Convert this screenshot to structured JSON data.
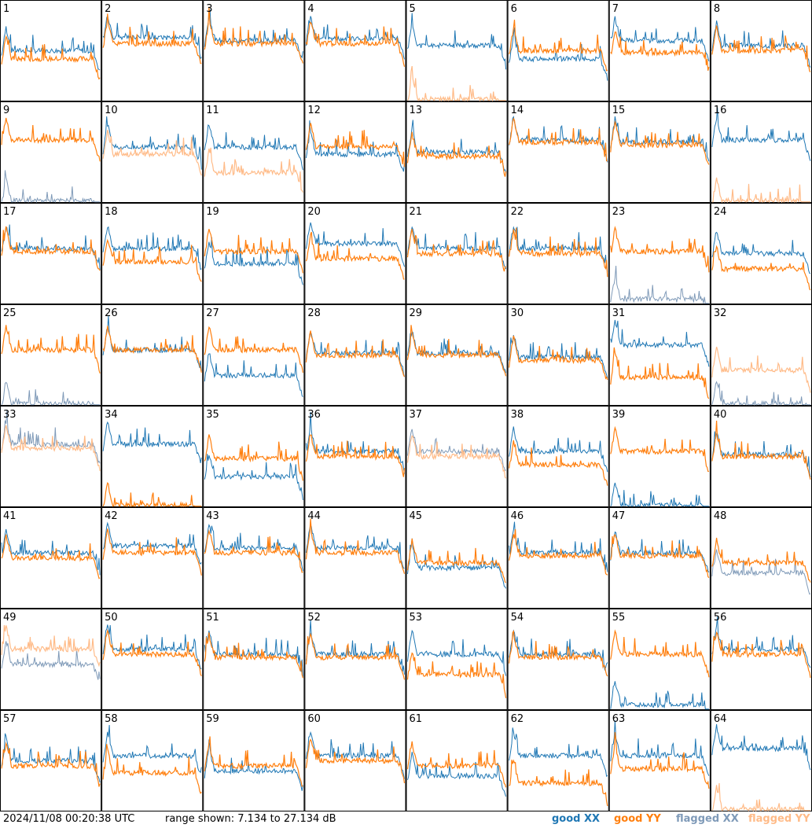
{
  "timestamp": "2024/11/08 00:20:38 UTC",
  "range_text": "range shown: 7.134 to 27.134 dB",
  "legend": {
    "good_xx": "good XX",
    "good_yy": "good YY",
    "flagged_xx": "flagged XX",
    "flagged_yy": "flagged YY"
  },
  "colors": {
    "good_xx": "#1f77b4",
    "good_yy": "#ff7f0e",
    "flagged_xx": "#7f9ab8",
    "flagged_yy": "#ffbb88"
  },
  "chart_data": {
    "type": "line",
    "grid": "8x8 small multiples",
    "y_range_db": [
      7.134,
      27.134
    ],
    "panels": [
      {
        "label": "1",
        "xx": "good",
        "yy": "good",
        "xx_level": 0.5,
        "yy_level": 0.42
      },
      {
        "label": "2",
        "xx": "good",
        "yy": "good",
        "xx_level": 0.63,
        "yy_level": 0.57
      },
      {
        "label": "3",
        "xx": "good",
        "yy": "good",
        "xx_level": 0.6,
        "yy_level": 0.57
      },
      {
        "label": "4",
        "xx": "good",
        "yy": "good",
        "xx_level": 0.62,
        "yy_level": 0.57
      },
      {
        "label": "5",
        "xx": "good",
        "yy": "flagged",
        "xx_level": 0.55,
        "yy_level": 0.02
      },
      {
        "label": "6",
        "xx": "good",
        "yy": "good",
        "xx_level": 0.42,
        "yy_level": 0.5
      },
      {
        "label": "7",
        "xx": "good",
        "yy": "good",
        "xx_level": 0.6,
        "yy_level": 0.48
      },
      {
        "label": "8",
        "xx": "good",
        "yy": "good",
        "xx_level": 0.55,
        "yy_level": 0.5
      },
      {
        "label": "9",
        "xx": "flagged",
        "yy": "good",
        "xx_level": 0.02,
        "yy_level": 0.62
      },
      {
        "label": "10",
        "xx": "good",
        "yy": "flagged",
        "xx_level": 0.55,
        "yy_level": 0.48
      },
      {
        "label": "11",
        "xx": "good",
        "yy": "flagged",
        "xx_level": 0.55,
        "yy_level": 0.3
      },
      {
        "label": "12",
        "xx": "good",
        "yy": "good",
        "xx_level": 0.48,
        "yy_level": 0.55
      },
      {
        "label": "13",
        "xx": "good",
        "yy": "good",
        "xx_level": 0.5,
        "yy_level": 0.46
      },
      {
        "label": "14",
        "xx": "good",
        "yy": "good",
        "xx_level": 0.62,
        "yy_level": 0.6
      },
      {
        "label": "15",
        "xx": "good",
        "yy": "good",
        "xx_level": 0.6,
        "yy_level": 0.57
      },
      {
        "label": "16",
        "xx": "good",
        "yy": "flagged",
        "xx_level": 0.62,
        "yy_level": 0.02
      },
      {
        "label": "17",
        "xx": "good",
        "yy": "good",
        "xx_level": 0.55,
        "yy_level": 0.52
      },
      {
        "label": "18",
        "xx": "good",
        "yy": "good",
        "xx_level": 0.55,
        "yy_level": 0.42
      },
      {
        "label": "19",
        "xx": "good",
        "yy": "good",
        "xx_level": 0.4,
        "yy_level": 0.52
      },
      {
        "label": "20",
        "xx": "good",
        "yy": "good",
        "xx_level": 0.6,
        "yy_level": 0.45
      },
      {
        "label": "21",
        "xx": "good",
        "yy": "good",
        "xx_level": 0.55,
        "yy_level": 0.5
      },
      {
        "label": "22",
        "xx": "good",
        "yy": "good",
        "xx_level": 0.55,
        "yy_level": 0.5
      },
      {
        "label": "23",
        "xx": "flagged",
        "yy": "good",
        "xx_level": 0.05,
        "yy_level": 0.52
      },
      {
        "label": "24",
        "xx": "good",
        "yy": "good",
        "xx_level": 0.5,
        "yy_level": 0.35
      },
      {
        "label": "25",
        "xx": "flagged",
        "yy": "good",
        "xx_level": 0.02,
        "yy_level": 0.55
      },
      {
        "label": "26",
        "xx": "good",
        "yy": "good",
        "xx_level": 0.55,
        "yy_level": 0.55
      },
      {
        "label": "27",
        "xx": "good",
        "yy": "good",
        "xx_level": 0.3,
        "yy_level": 0.55
      },
      {
        "label": "28",
        "xx": "good",
        "yy": "good",
        "xx_level": 0.52,
        "yy_level": 0.5
      },
      {
        "label": "29",
        "xx": "good",
        "yy": "good",
        "xx_level": 0.52,
        "yy_level": 0.5
      },
      {
        "label": "30",
        "xx": "good",
        "yy": "good",
        "xx_level": 0.48,
        "yy_level": 0.45
      },
      {
        "label": "31",
        "xx": "good",
        "yy": "good",
        "xx_level": 0.6,
        "yy_level": 0.28
      },
      {
        "label": "32",
        "xx": "flagged",
        "yy": "flagged",
        "xx_level": 0.02,
        "yy_level": 0.35
      },
      {
        "label": "33",
        "xx": "flagged",
        "yy": "flagged",
        "xx_level": 0.62,
        "yy_level": 0.58
      },
      {
        "label": "34",
        "xx": "good",
        "yy": "good",
        "xx_level": 0.62,
        "yy_level": 0.02
      },
      {
        "label": "35",
        "xx": "good",
        "yy": "good",
        "xx_level": 0.3,
        "yy_level": 0.48
      },
      {
        "label": "36",
        "xx": "good",
        "yy": "good",
        "xx_level": 0.55,
        "yy_level": 0.5
      },
      {
        "label": "37",
        "xx": "flagged",
        "yy": "flagged",
        "xx_level": 0.55,
        "yy_level": 0.5
      },
      {
        "label": "38",
        "xx": "good",
        "yy": "good",
        "xx_level": 0.55,
        "yy_level": 0.42
      },
      {
        "label": "39",
        "xx": "good",
        "yy": "good",
        "xx_level": 0.02,
        "yy_level": 0.55
      },
      {
        "label": "40",
        "xx": "good",
        "yy": "good",
        "xx_level": 0.52,
        "yy_level": 0.5
      },
      {
        "label": "41",
        "xx": "good",
        "yy": "good",
        "xx_level": 0.55,
        "yy_level": 0.5
      },
      {
        "label": "42",
        "xx": "good",
        "yy": "good",
        "xx_level": 0.62,
        "yy_level": 0.55
      },
      {
        "label": "43",
        "xx": "good",
        "yy": "good",
        "xx_level": 0.6,
        "yy_level": 0.55
      },
      {
        "label": "44",
        "xx": "good",
        "yy": "good",
        "xx_level": 0.6,
        "yy_level": 0.55
      },
      {
        "label": "45",
        "xx": "good",
        "yy": "good",
        "xx_level": 0.4,
        "yy_level": 0.45
      },
      {
        "label": "46",
        "xx": "good",
        "yy": "good",
        "xx_level": 0.55,
        "yy_level": 0.52
      },
      {
        "label": "47",
        "xx": "good",
        "yy": "good",
        "xx_level": 0.55,
        "yy_level": 0.52
      },
      {
        "label": "48",
        "xx": "flagged",
        "yy": "good",
        "xx_level": 0.35,
        "yy_level": 0.45
      },
      {
        "label": "49",
        "xx": "flagged",
        "yy": "flagged",
        "xx_level": 0.45,
        "yy_level": 0.6
      },
      {
        "label": "50",
        "xx": "good",
        "yy": "good",
        "xx_level": 0.6,
        "yy_level": 0.55
      },
      {
        "label": "51",
        "xx": "good",
        "yy": "good",
        "xx_level": 0.55,
        "yy_level": 0.52
      },
      {
        "label": "52",
        "xx": "good",
        "yy": "good",
        "xx_level": 0.55,
        "yy_level": 0.52
      },
      {
        "label": "53",
        "xx": "good",
        "yy": "good",
        "xx_level": 0.55,
        "yy_level": 0.35
      },
      {
        "label": "54",
        "xx": "good",
        "yy": "good",
        "xx_level": 0.55,
        "yy_level": 0.52
      },
      {
        "label": "55",
        "xx": "good",
        "yy": "good",
        "xx_level": 0.05,
        "yy_level": 0.55
      },
      {
        "label": "56",
        "xx": "good",
        "yy": "good",
        "xx_level": 0.6,
        "yy_level": 0.55
      },
      {
        "label": "57",
        "xx": "good",
        "yy": "good",
        "xx_level": 0.5,
        "yy_level": 0.45
      },
      {
        "label": "58",
        "xx": "good",
        "yy": "good",
        "xx_level": 0.55,
        "yy_level": 0.38
      },
      {
        "label": "59",
        "xx": "good",
        "yy": "good",
        "xx_level": 0.4,
        "yy_level": 0.45
      },
      {
        "label": "60",
        "xx": "good",
        "yy": "good",
        "xx_level": 0.55,
        "yy_level": 0.5
      },
      {
        "label": "61",
        "xx": "good",
        "yy": "good",
        "xx_level": 0.35,
        "yy_level": 0.45
      },
      {
        "label": "62",
        "xx": "good",
        "yy": "good",
        "xx_level": 0.55,
        "yy_level": 0.28
      },
      {
        "label": "63",
        "xx": "good",
        "yy": "good",
        "xx_level": 0.55,
        "yy_level": 0.42
      },
      {
        "label": "64",
        "xx": "good",
        "yy": "flagged",
        "xx_level": 0.62,
        "yy_level": 0.02
      }
    ]
  }
}
